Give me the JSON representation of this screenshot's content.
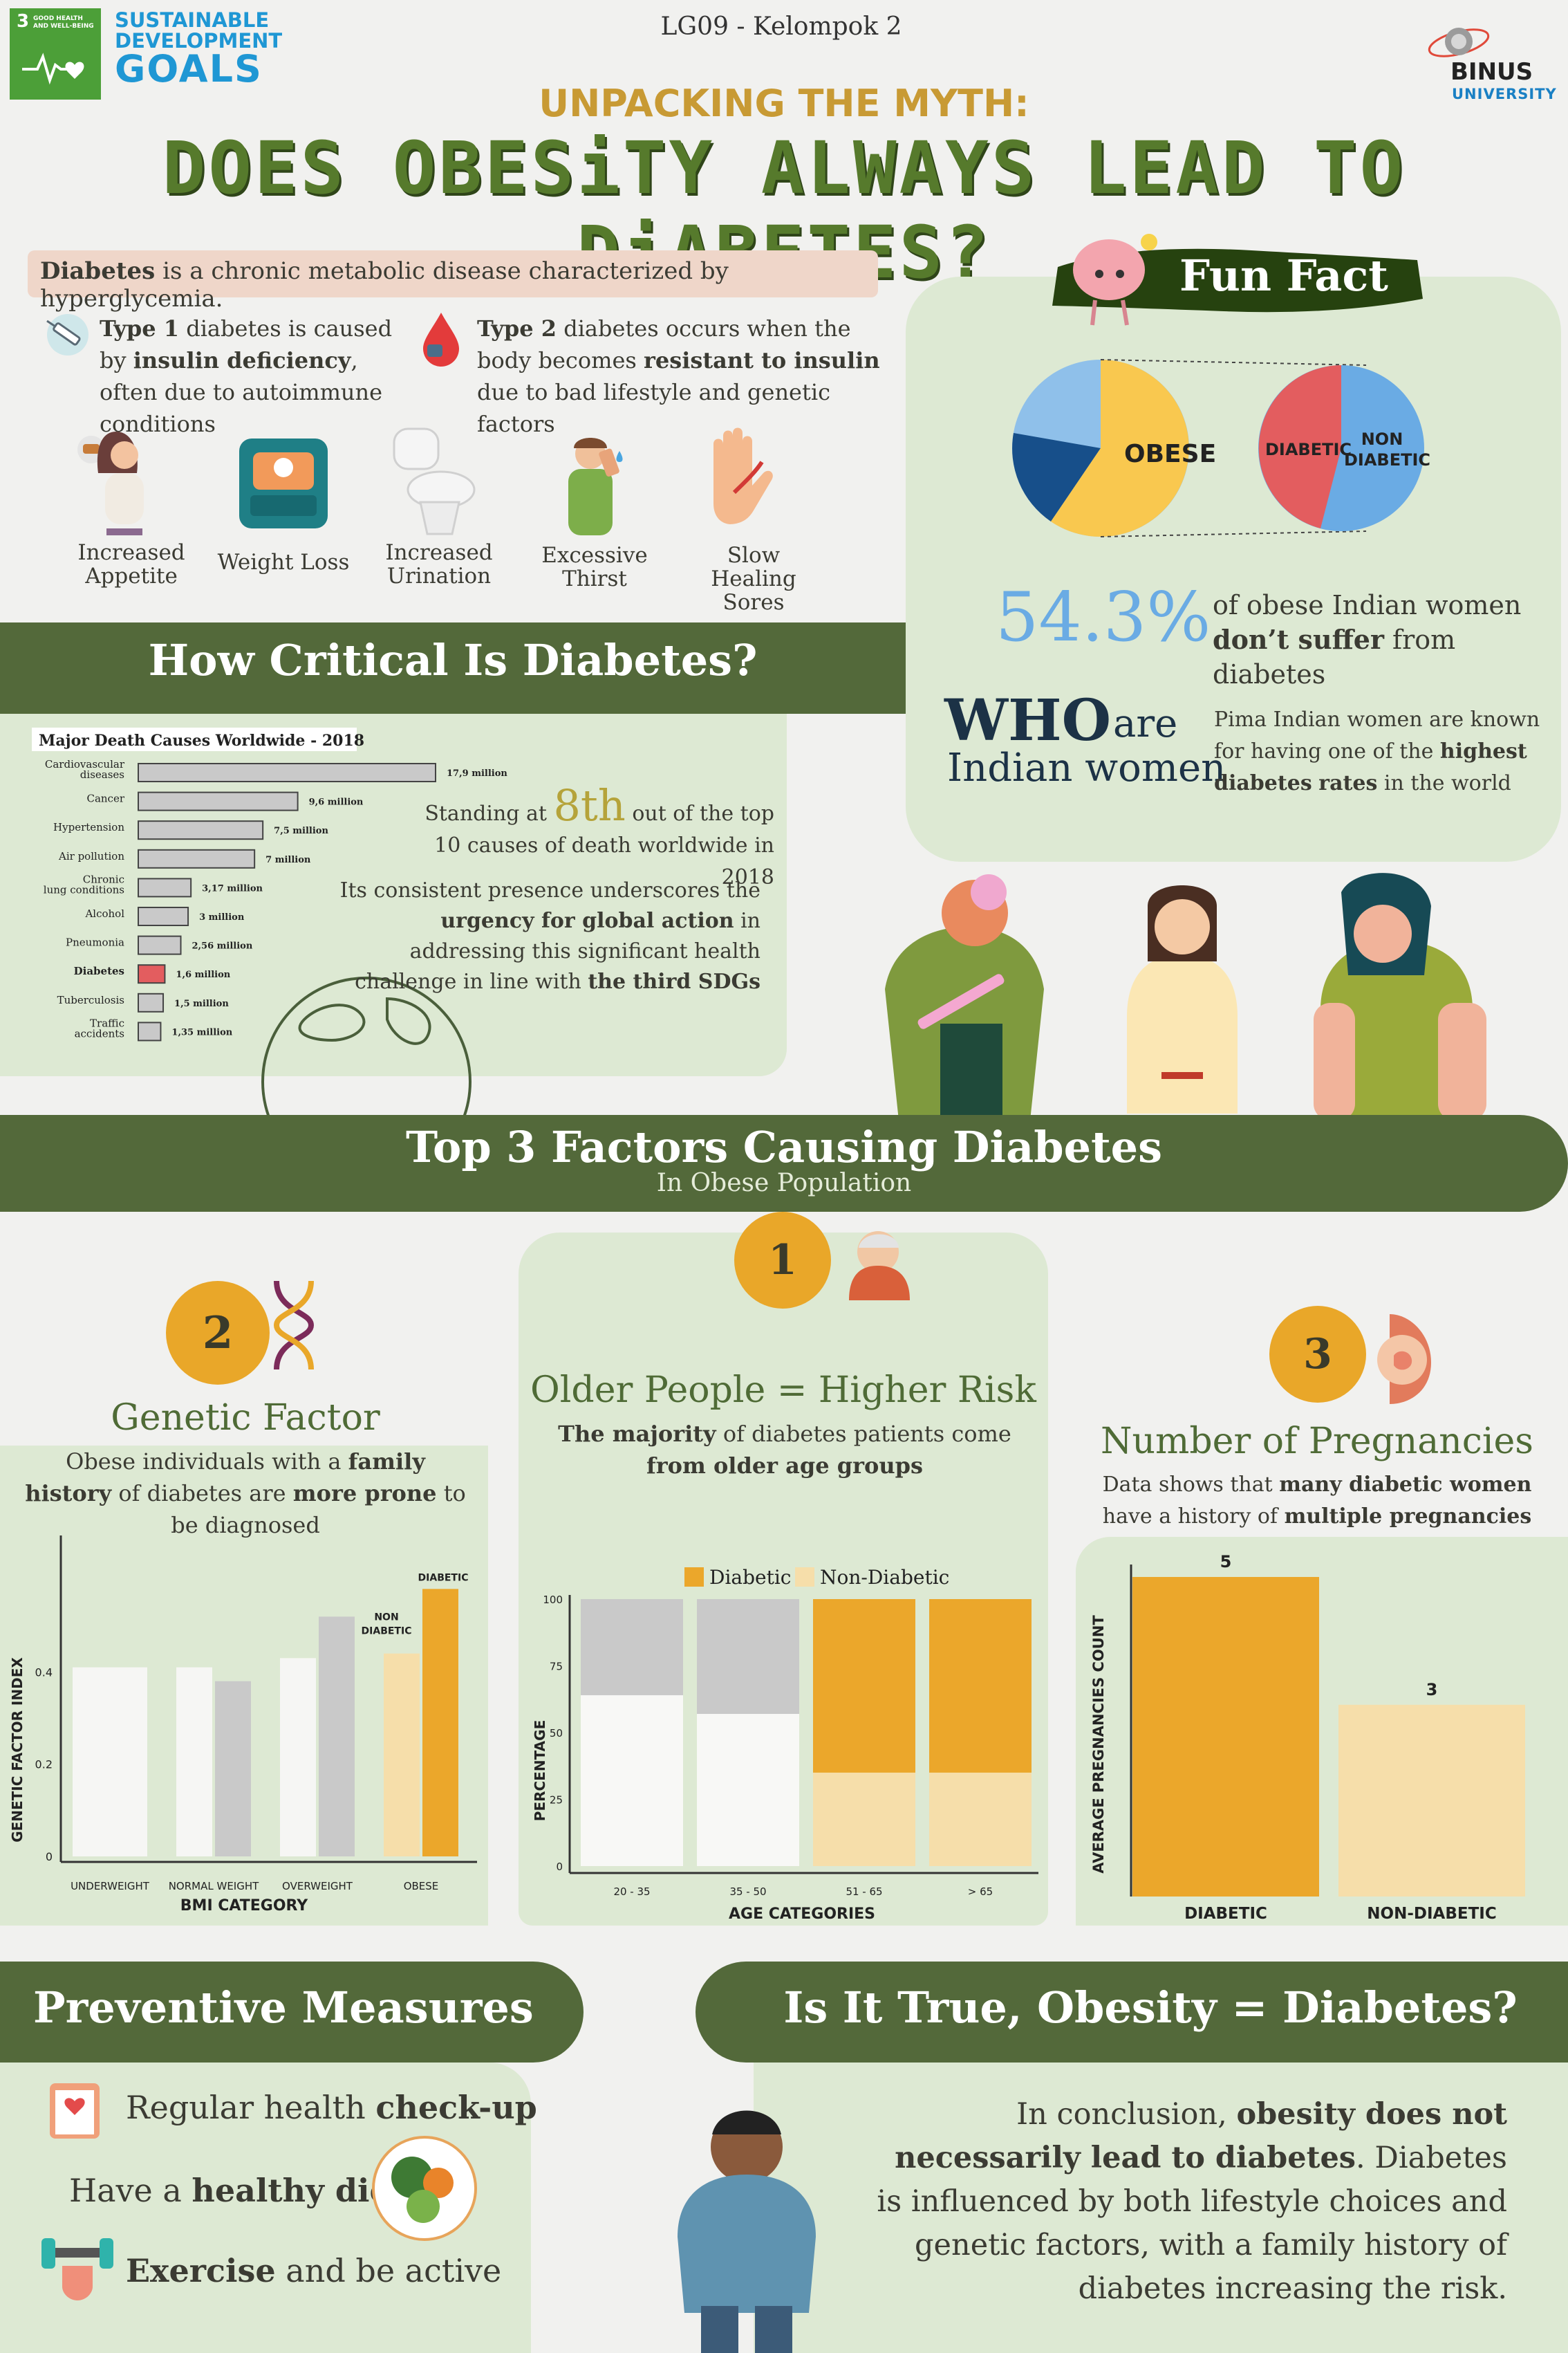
{
  "header": {
    "sdg_number": "3",
    "sdg_small": "GOOD HEALTH AND WELL-BEING",
    "sdg_title_1": "SUSTAINABLE",
    "sdg_title_2": "DEVELOPMENT",
    "sdg_title_3": "GOALS",
    "group": "LG09 - Kelompok 2",
    "university_1": "BINUS",
    "university_2": "UNIVERSITY",
    "kicker": "UNPACKING THE MYTH:",
    "title": "DOES OBESiTY ALWAYS LEAD TO DiABETES?"
  },
  "intro": {
    "definition_bold": "Diabetes",
    "definition_rest": " is a chronic metabolic disease characterized by hyperglycemia.",
    "type1_bold1": "Type 1",
    "type1_t1": " diabetes is caused by ",
    "type1_bold2": "insulin deficiency",
    "type1_t2": ", often due to autoimmune conditions",
    "type2_bold1": "Type 2",
    "type2_t1": " diabetes occurs when the body becomes ",
    "type2_bold2": "resistant to insulin",
    "type2_t2": " due to bad lifestyle and genetic factors",
    "symptoms": [
      {
        "label": "Increased Appetite",
        "icon": "appetite-icon"
      },
      {
        "label": "Weight Loss",
        "icon": "scale-icon"
      },
      {
        "label": "Increased Urination",
        "icon": "toilet-icon"
      },
      {
        "label": "Excessive Thirst",
        "icon": "thirst-icon"
      },
      {
        "label": "Slow Healing Sores",
        "icon": "wound-hand-icon"
      }
    ]
  },
  "fun_fact": {
    "title": "Fun Fact",
    "obese_label": "OBESE",
    "diabetic_label": "DIABETIC",
    "non_diabetic_label": "NON DIABETIC",
    "stat": "54.3%",
    "stat_text": "of obese Indian women ",
    "stat_bold": "don’t suffer",
    "stat_tail": " from diabetes",
    "who_big": "WHO",
    "who_are": "are",
    "who_sub": "Indian women",
    "pima_t1": "Pima Indian women are known for having one of the ",
    "pima_bold1": "highest diabetes",
    "pima_bold2": "rates",
    "pima_t2": " in the world",
    "pie_split": {
      "diabetic_pct": 45.7,
      "non_diabetic_pct": 54.3
    }
  },
  "critical": {
    "title": "How Critical Is Diabetes?",
    "standing": "Standing at ",
    "rank": "8th",
    "standing_tail": " out of the top 10 causes of death worldwide in 2018",
    "p2_t1": "Its consistent presence underscores the ",
    "p2_bold1": "urgency for global action",
    "p2_t2": " in addressing this significant health challenge in line with ",
    "p2_bold2": "the third SDGs"
  },
  "factors": {
    "title": "Top 3 Factors Causing Diabetes",
    "subtitle": "In Obese Population",
    "f1": {
      "num": "1",
      "title": "Older People = Higher Risk",
      "d1": "The majority",
      "d2": " of diabetes patients come ",
      "d3": "from older age groups"
    },
    "f2": {
      "num": "2",
      "title": "Genetic Factor",
      "d1": "Obese individuals with a ",
      "d2": "family history",
      "d3": " of diabetes are ",
      "d4": "more prone",
      "d5": " to be diagnosed"
    },
    "f3": {
      "num": "3",
      "title": "Number of Pregnancies",
      "d1": "Data shows that ",
      "d2": "many diabetic women",
      "d3": " have a history of ",
      "d4": "multiple pregnancies"
    }
  },
  "preventive": {
    "title": "Preventive Measures",
    "i1_t": "Regular health ",
    "i1_b": "check-up",
    "i2_t": "Have a ",
    "i2_b": "healthy diet",
    "i3_b": "Exercise",
    "i3_t": " and be active"
  },
  "conclusion": {
    "title": "Is It True, Obesity = Diabetes?",
    "t1": "In conclusion, ",
    "b1": "obesity does not necessarily lead to diabetes",
    "t2": ". Diabetes is influenced by both lifestyle choices and genetic factors, with a family history of diabetes increasing the risk."
  },
  "colors": {
    "dark_green": "#53693a",
    "light_panel": "#dde9d3",
    "orange": "#eba72b",
    "cream": "#f6deaa",
    "blue": "#6aabe4",
    "red": "#e35d5f",
    "yellow": "#f9c84f"
  },
  "chart_data": [
    {
      "type": "bar",
      "orientation": "horizontal",
      "title": "Major Death Causes Worldwide - 2018",
      "categories": [
        "Cardiovascular diseases",
        "Cancer",
        "Hypertension",
        "Air pollution",
        "Chronic lung conditions",
        "Alcohol",
        "Pneumonia",
        "Diabetes",
        "Tuberculosis",
        "Traffic accidents"
      ],
      "values": [
        17.9,
        9.6,
        7.5,
        7,
        3.17,
        3,
        2.56,
        1.6,
        1.5,
        1.35
      ],
      "value_labels": [
        "17,9 million",
        "9,6 million",
        "7,5 million",
        "7 million",
        "3,17 million",
        "3 million",
        "2,56 million",
        "1,6 million",
        "1,5 million",
        "1,35 million"
      ],
      "highlight": "Diabetes",
      "xlim": [
        0,
        17.9
      ]
    },
    {
      "type": "bar",
      "title": "Genetic Factor",
      "xlabel": "BMI CATEGORY",
      "ylabel": "GENETIC FACTOR INDEX",
      "categories": [
        "UNDERWEIGHT",
        "NORMAL WEIGHT",
        "OVERWEIGHT",
        "OBESE"
      ],
      "series": [
        {
          "name": "NON DIABETIC",
          "values": [
            0.41,
            0.41,
            0.43,
            0.44
          ]
        },
        {
          "name": "DIABETIC",
          "values": [
            0.41,
            0.38,
            0.52,
            0.58
          ]
        }
      ],
      "yticks": [
        "0",
        "0.2",
        "0.4"
      ],
      "ylim": [
        0,
        0.6
      ],
      "labels": {
        "non": "NON DIABETIC",
        "dia": "DIABETIC"
      }
    },
    {
      "type": "bar",
      "stacked": true,
      "title": "Older People = Higher Risk",
      "xlabel": "AGE CATEGORIES",
      "ylabel": "PERCENTAGE",
      "categories": [
        "20 - 35",
        "35 - 50",
        "51 - 65",
        "> 65"
      ],
      "series": [
        {
          "name": "Diabetic",
          "values": [
            36,
            43,
            65,
            65
          ]
        },
        {
          "name": "Non-Diabetic",
          "values": [
            64,
            57,
            35,
            35
          ]
        }
      ],
      "yticks": [
        "0",
        "25",
        "50",
        "75",
        "100"
      ],
      "ylim": [
        0,
        100
      ]
    },
    {
      "type": "bar",
      "title": "Number of Pregnancies",
      "ylabel": "AVERAGE PREGNANCIES COUNT",
      "categories": [
        "DIABETIC",
        "NON-DIABETIC"
      ],
      "values": [
        5,
        3
      ],
      "value_labels": [
        "5",
        "3"
      ],
      "ylim": [
        0,
        5
      ]
    }
  ]
}
